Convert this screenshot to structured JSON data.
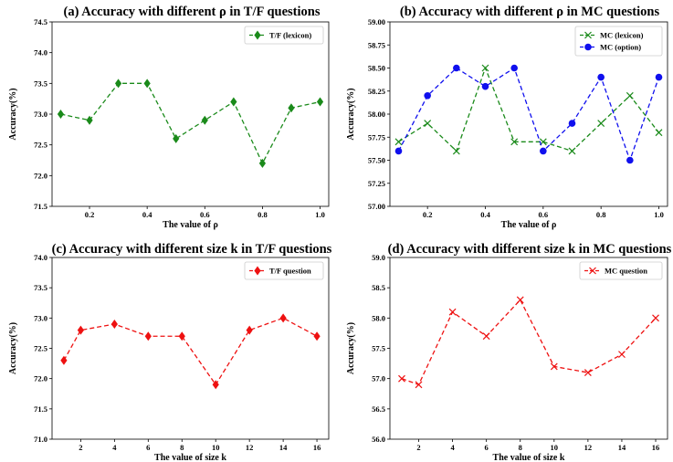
{
  "colors": {
    "green": "#1a8a1a",
    "blue": "#1010ee",
    "red": "#ee1111"
  },
  "chart_data": [
    {
      "type": "line",
      "title": "(a) Accuracy with different ρ in T/F questions",
      "xlabel": "The value of ρ",
      "ylabel": "Accuracy(%)",
      "xlim": [
        0.07,
        1.03
      ],
      "ylim": [
        71.5,
        74.5
      ],
      "xticks": [
        0.2,
        0.4,
        0.6,
        0.8,
        1.0
      ],
      "xtick_labels": [
        "0.2",
        "0.4",
        "0.6",
        "0.8",
        "1.0"
      ],
      "yticks": [
        71.5,
        72.0,
        72.5,
        73.0,
        73.5,
        74.0,
        74.5
      ],
      "ytick_labels": [
        "71.5",
        "72.0",
        "72.5",
        "73.0",
        "73.5",
        "74.0",
        "74.5"
      ],
      "legend_position": "top-right",
      "grid": false,
      "x": [
        0.1,
        0.2,
        0.3,
        0.4,
        0.5,
        0.6,
        0.7,
        0.8,
        0.9,
        1.0
      ],
      "series": [
        {
          "name": "T/F (lexicon)",
          "color": "#1a8a1a",
          "marker": "diamond",
          "values": [
            73.0,
            72.9,
            73.5,
            73.5,
            72.6,
            72.9,
            73.2,
            72.2,
            73.1,
            73.2
          ]
        }
      ]
    },
    {
      "type": "line",
      "title": "(b) Accuracy with different ρ in MC questions",
      "xlabel": "The value of ρ",
      "ylabel": "Accuracy(%)",
      "xlim": [
        0.07,
        1.03
      ],
      "ylim": [
        57.0,
        59.0
      ],
      "xticks": [
        0.2,
        0.4,
        0.6,
        0.8,
        1.0
      ],
      "xtick_labels": [
        "0.2",
        "0.4",
        "0.6",
        "0.8",
        "1.0"
      ],
      "yticks": [
        57.0,
        57.25,
        57.5,
        57.75,
        58.0,
        58.25,
        58.5,
        58.75,
        59.0
      ],
      "ytick_labels": [
        "57.00",
        "57.25",
        "57.50",
        "57.75",
        "58.00",
        "58.25",
        "58.50",
        "58.75",
        "59.00"
      ],
      "legend_position": "top-right",
      "grid": false,
      "x": [
        0.1,
        0.2,
        0.3,
        0.4,
        0.5,
        0.6,
        0.7,
        0.8,
        0.9,
        1.0
      ],
      "series": [
        {
          "name": "MC (lexicon)",
          "color": "#1a8a1a",
          "marker": "x",
          "values": [
            57.7,
            57.9,
            57.6,
            58.5,
            57.7,
            57.7,
            57.6,
            57.9,
            58.2,
            57.8
          ]
        },
        {
          "name": "MC (option)",
          "color": "#1010ee",
          "marker": "circle",
          "values": [
            57.6,
            58.2,
            58.5,
            58.3,
            58.5,
            57.6,
            57.9,
            58.4,
            57.5,
            58.4
          ]
        }
      ]
    },
    {
      "type": "line",
      "title": "(c) Accuracy with different size k in T/F questions",
      "xlabel": "The value of size k",
      "ylabel": "Accuracy(%)",
      "xlim": [
        0.3,
        16.7
      ],
      "ylim": [
        71.0,
        74.0
      ],
      "xticks": [
        2,
        4,
        6,
        8,
        10,
        12,
        14,
        16
      ],
      "xtick_labels": [
        "2",
        "4",
        "6",
        "8",
        "10",
        "12",
        "14",
        "16"
      ],
      "yticks": [
        71.0,
        71.5,
        72.0,
        72.5,
        73.0,
        73.5,
        74.0
      ],
      "ytick_labels": [
        "71.0",
        "71.5",
        "72.0",
        "72.5",
        "73.0",
        "73.5",
        "74.0"
      ],
      "legend_position": "top-right",
      "grid": false,
      "x": [
        1,
        2,
        4,
        6,
        8,
        10,
        12,
        14,
        16
      ],
      "series": [
        {
          "name": "T/F question",
          "color": "#ee1111",
          "marker": "diamond",
          "values": [
            72.3,
            72.8,
            72.9,
            72.7,
            72.7,
            71.9,
            72.8,
            73.0,
            72.7
          ]
        }
      ]
    },
    {
      "type": "line",
      "title": "(d) Accuracy with different size k in MC questions",
      "xlabel": "The value of size k",
      "ylabel": "Accuracy(%)",
      "xlim": [
        0.3,
        16.7
      ],
      "ylim": [
        56.0,
        59.0
      ],
      "xticks": [
        2,
        4,
        6,
        8,
        10,
        12,
        14,
        16
      ],
      "xtick_labels": [
        "2",
        "4",
        "6",
        "8",
        "10",
        "12",
        "14",
        "16"
      ],
      "yticks": [
        56.0,
        56.5,
        57.0,
        57.5,
        58.0,
        58.5,
        59.0
      ],
      "ytick_labels": [
        "56.0",
        "56.5",
        "57.0",
        "57.5",
        "58.0",
        "58.5",
        "59.0"
      ],
      "legend_position": "top-right",
      "grid": false,
      "x": [
        1,
        2,
        4,
        6,
        8,
        10,
        12,
        14,
        16
      ],
      "series": [
        {
          "name": "MC question",
          "color": "#ee1111",
          "marker": "x",
          "values": [
            57.0,
            56.9,
            58.1,
            57.7,
            58.3,
            57.2,
            57.1,
            57.4,
            58.0
          ]
        }
      ]
    }
  ]
}
